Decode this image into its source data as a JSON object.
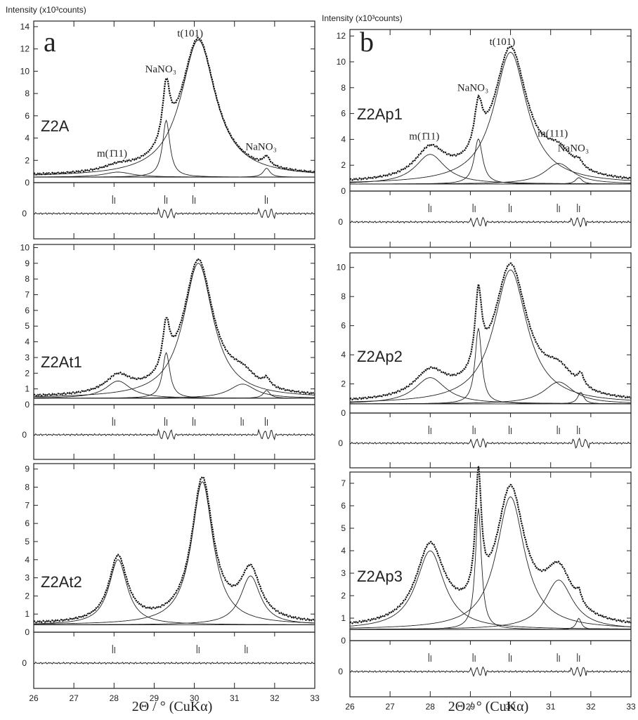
{
  "figure": {
    "xlabel": "2Θ / ° (CuKα)",
    "x_ticks": [
      "26",
      "27",
      "28",
      "29",
      "30",
      "31",
      "32",
      "33"
    ],
    "y_axis_label_left": "Intensity (x10³counts)",
    "y_axis_label_right": "Intensity (x10³counts)",
    "column_labels": [
      "a",
      "b"
    ]
  },
  "chart_data": [
    {
      "type": "line",
      "sample": "Z2A",
      "column": "a",
      "xlim": [
        26,
        33
      ],
      "ylim": [
        0,
        14.5
      ],
      "ylabel": "Intensity (x10³counts)",
      "y_ticks": [
        0,
        2,
        4,
        6,
        8,
        10,
        12,
        14
      ],
      "peaks": [
        {
          "label": "m(1̄11)",
          "center": 28.1,
          "height": 0.45,
          "width": 0.85
        },
        {
          "label": "NaNO₃",
          "center": 29.3,
          "height": 5.1,
          "width": 0.22
        },
        {
          "label": "t(101)",
          "center": 30.1,
          "height": 12.3,
          "width": 1.05
        },
        {
          "label": "NaNO₃",
          "center": 31.8,
          "height": 0.8,
          "width": 0.2
        }
      ],
      "baseline": 0.55,
      "peak_labels_shown": [
        "m(1̄11)",
        "NaNO₃",
        "t(101)",
        "NaNO₃"
      ],
      "bragg_markers": [
        28.0,
        29.3,
        30.0,
        31.8
      ]
    },
    {
      "type": "line",
      "sample": "Z2At1",
      "column": "a",
      "xlim": [
        26,
        33
      ],
      "ylim": [
        0,
        10.2
      ],
      "y_ticks": [
        0,
        1,
        2,
        3,
        4,
        5,
        6,
        7,
        8,
        9,
        10
      ],
      "peaks": [
        {
          "label": "m(1̄11)",
          "center": 28.1,
          "height": 1.1,
          "width": 0.75
        },
        {
          "label": "NaNO₃",
          "center": 29.3,
          "height": 2.9,
          "width": 0.22
        },
        {
          "label": "t(101)",
          "center": 30.1,
          "height": 8.6,
          "width": 0.9
        },
        {
          "label": "m(111)",
          "center": 31.2,
          "height": 0.9,
          "width": 0.8
        },
        {
          "label": "NaNO₃",
          "center": 31.8,
          "height": 0.5,
          "width": 0.2
        }
      ],
      "baseline": 0.45,
      "peak_labels_shown": [],
      "bragg_markers": [
        28.0,
        29.3,
        30.0,
        31.2,
        31.8
      ]
    },
    {
      "type": "line",
      "sample": "Z2At2",
      "column": "a",
      "xlim": [
        26,
        33
      ],
      "ylim": [
        0,
        9.3
      ],
      "y_ticks": [
        0,
        1,
        2,
        3,
        4,
        5,
        6,
        7,
        8,
        9
      ],
      "peaks": [
        {
          "label": "m(1̄11)",
          "center": 28.1,
          "height": 3.6,
          "width": 0.55
        },
        {
          "label": "t(101)",
          "center": 30.2,
          "height": 7.9,
          "width": 0.65
        },
        {
          "label": "m(111)",
          "center": 31.4,
          "height": 2.7,
          "width": 0.6
        }
      ],
      "baseline": 0.45,
      "peak_labels_shown": [],
      "bragg_markers": [
        28.0,
        30.1,
        31.3
      ]
    },
    {
      "type": "line",
      "sample": "Z2Ap1",
      "column": "b",
      "xlim": [
        26,
        33
      ],
      "ylim": [
        0,
        12.5
      ],
      "y_ticks": [
        0,
        2,
        4,
        6,
        8,
        10,
        12
      ],
      "peaks": [
        {
          "label": "m(1̄11)",
          "center": 28.0,
          "height": 2.3,
          "width": 0.9
        },
        {
          "label": "NaNO₃",
          "center": 29.2,
          "height": 3.5,
          "width": 0.25
        },
        {
          "label": "t(101)",
          "center": 30.0,
          "height": 10.2,
          "width": 1.0
        },
        {
          "label": "m(111)",
          "center": 31.2,
          "height": 1.6,
          "width": 0.85
        },
        {
          "label": "NaNO₃",
          "center": 31.7,
          "height": 0.5,
          "width": 0.2
        }
      ],
      "baseline": 0.6,
      "peak_labels_shown": [
        "m(1̄11)",
        "NaNO₃",
        "t(101)",
        "m(111)",
        "NaNO₃"
      ],
      "bragg_markers": [
        28.0,
        29.1,
        30.0,
        31.2,
        31.7
      ]
    },
    {
      "type": "line",
      "sample": "Z2Ap2",
      "column": "b",
      "xlim": [
        26,
        33
      ],
      "ylim": [
        0,
        11
      ],
      "y_ticks": [
        0,
        2,
        4,
        6,
        8,
        10
      ],
      "peaks": [
        {
          "label": "m(1̄11)",
          "center": 28.0,
          "height": 1.8,
          "width": 0.95
        },
        {
          "label": "NaNO₃",
          "center": 29.2,
          "height": 5.2,
          "width": 0.2
        },
        {
          "label": "t(101)",
          "center": 30.0,
          "height": 9.2,
          "width": 1.0
        },
        {
          "label": "m(111)",
          "center": 31.2,
          "height": 1.5,
          "width": 0.9
        },
        {
          "label": "NaNO₃",
          "center": 31.75,
          "height": 0.8,
          "width": 0.18
        }
      ],
      "baseline": 0.7,
      "peak_labels_shown": [],
      "bragg_markers": [
        28.0,
        29.1,
        30.0,
        31.2,
        31.7
      ]
    },
    {
      "type": "line",
      "sample": "Z2Ap3",
      "column": "b",
      "xlim": [
        26,
        33
      ],
      "ylim": [
        0,
        7.5
      ],
      "y_ticks": [
        0,
        1,
        2,
        3,
        4,
        5,
        6,
        7
      ],
      "peaks": [
        {
          "label": "m(1̄11)",
          "center": 28.0,
          "height": 3.5,
          "width": 0.85
        },
        {
          "label": "NaNO₃",
          "center": 29.2,
          "height": 5.4,
          "width": 0.18
        },
        {
          "label": "t(101)",
          "center": 30.0,
          "height": 5.9,
          "width": 0.85
        },
        {
          "label": "m(111)",
          "center": 31.2,
          "height": 2.2,
          "width": 0.85
        },
        {
          "label": "NaNO₃",
          "center": 31.7,
          "height": 0.5,
          "width": 0.15
        }
      ],
      "baseline": 0.55,
      "peak_labels_shown": [],
      "bragg_markers": [
        28.0,
        29.1,
        30.0,
        31.2,
        31.7
      ]
    }
  ]
}
